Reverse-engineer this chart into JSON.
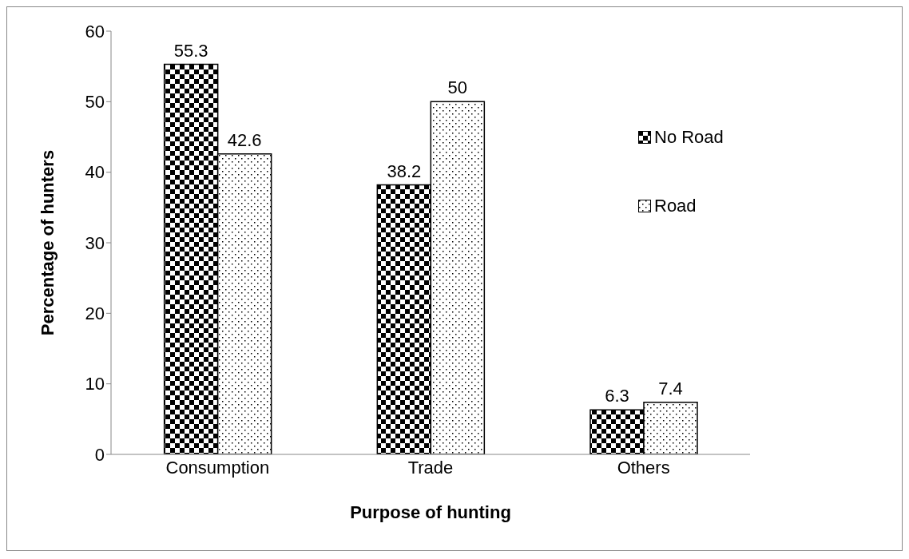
{
  "chart_data": {
    "type": "bar",
    "xlabel": "Purpose of hunting",
    "ylabel": "Percentage of hunters",
    "categories": [
      "Consumption",
      "Trade",
      "Others"
    ],
    "series": [
      {
        "name": "No Road",
        "color": "#000000",
        "values": [
          55.3,
          38.2,
          6.3
        ]
      },
      {
        "name": "Road",
        "color": "#000000",
        "values": [
          42.6,
          50,
          7.4
        ]
      }
    ],
    "ylim": [
      0,
      60
    ],
    "yticks": [
      0,
      10,
      20,
      30,
      40,
      50,
      60
    ],
    "data_labels": true,
    "legend": "right",
    "grid": false
  }
}
